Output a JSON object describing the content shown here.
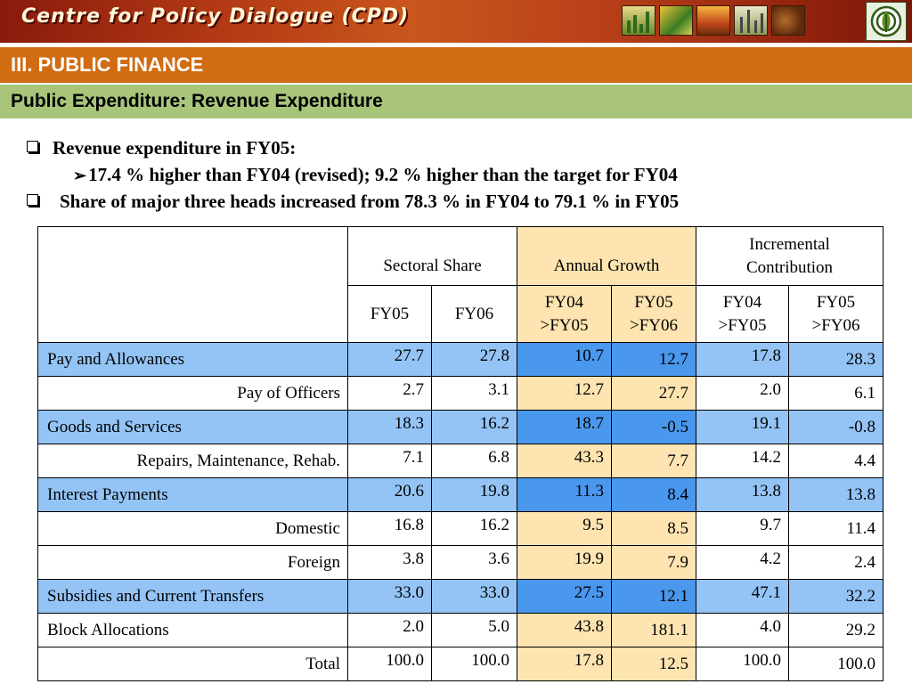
{
  "banner": {
    "title": "Centre for Policy Dialogue (CPD)",
    "thumbnails": [
      "chart-thumbnail",
      "map-thumbnail",
      "landscape-thumbnail",
      "city-thumbnail",
      "people-thumbnail"
    ],
    "logo_icon": "cpd-logo-icon"
  },
  "section": "III. PUBLIC FINANCE",
  "subsection": "Public Expenditure: Revenue Expenditure",
  "bullets": {
    "b1": "Revenue expenditure in FY05:",
    "b1_sub": "17.4 % higher than FY04 (revised);  9.2 % higher than the target for FY04",
    "b2": "Share of major three heads increased from 78.3 % in FY04 to 79.1 % in FY05"
  },
  "table": {
    "group_headers": {
      "sectoral": "Sectoral Share",
      "annual": "Annual Growth",
      "incremental": "Incremental Contribution"
    },
    "subheaders": {
      "sec1": "FY05",
      "sec2": "FY06",
      "ag1": "FY04 >FY05",
      "ag2": "FY05 >FY06",
      "ic1": "FY04 >FY05",
      "ic2": "FY05 >FY06"
    },
    "rows": [
      {
        "label": "Pay and Allowances",
        "v": [
          "27.7",
          "27.8",
          "10.7",
          "12.7",
          "17.8",
          "28.3"
        ]
      },
      {
        "label": "Pay of Officers",
        "v": [
          "2.7",
          "3.1",
          "12.7",
          "27.7",
          "2.0",
          "6.1"
        ]
      },
      {
        "label": "Goods and Services",
        "v": [
          "18.3",
          "16.2",
          "18.7",
          "-0.5",
          "19.1",
          "-0.8"
        ]
      },
      {
        "label": "Repairs, Maintenance, Rehab.",
        "v": [
          "7.1",
          "6.8",
          "43.3",
          "7.7",
          "14.2",
          "4.4"
        ]
      },
      {
        "label": "Interest Payments",
        "v": [
          "20.6",
          "19.8",
          "11.3",
          "8.4",
          "13.8",
          "13.8"
        ]
      },
      {
        "label": "Domestic",
        "v": [
          "16.8",
          "16.2",
          "9.5",
          "8.5",
          "9.7",
          "11.4"
        ]
      },
      {
        "label": "Foreign",
        "v": [
          "3.8",
          "3.6",
          "19.9",
          "7.9",
          "4.2",
          "2.4"
        ]
      },
      {
        "label": "Subsidies and Current Transfers",
        "v": [
          "33.0",
          "33.0",
          "27.5",
          "12.1",
          "47.1",
          "32.2"
        ]
      },
      {
        "label": "Block Allocations",
        "v": [
          "2.0",
          "5.0",
          "43.8",
          "181.1",
          "4.0",
          "29.2"
        ]
      },
      {
        "label": "Total",
        "v": [
          "100.0",
          "100.0",
          "17.8",
          "12.5",
          "100.0",
          "100.0"
        ]
      }
    ]
  },
  "colors": {
    "banner": "#b33a14",
    "section_bar": "#d16c12",
    "subsection_bar": "#a8c57a",
    "highlight_row": "#94c4f6",
    "highlight_growth": "#4a97ee",
    "annual_growth_bg": "#fde4b0"
  }
}
